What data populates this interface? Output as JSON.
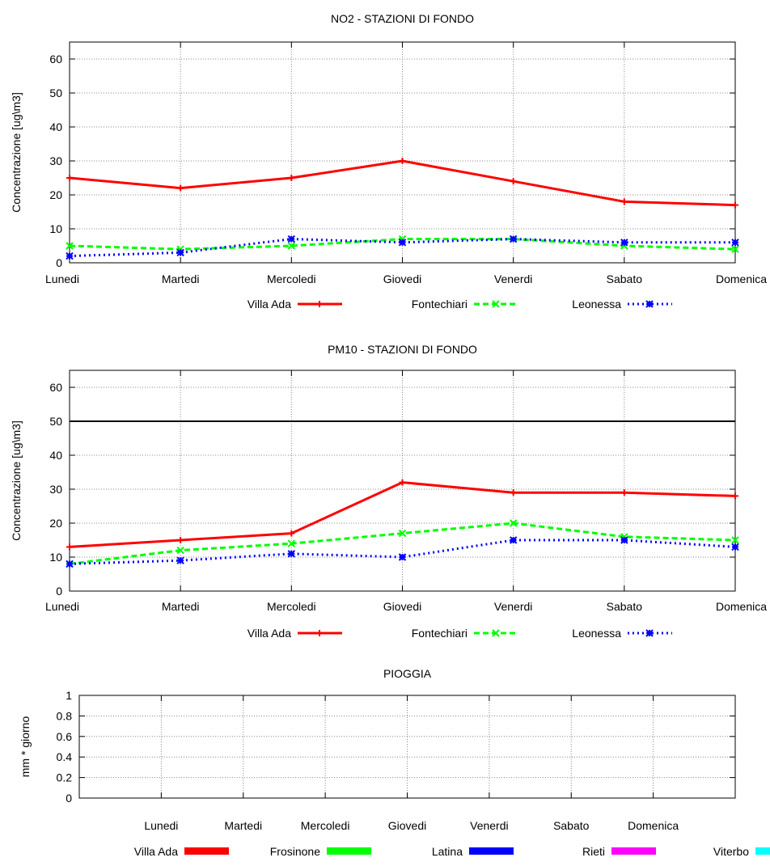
{
  "chart_data": [
    {
      "type": "line",
      "title": "NO2 - STAZIONI DI FONDO",
      "xlabel": "",
      "ylabel": "Concentrazione [ug\\m3]",
      "categories": [
        "Lunedi",
        "Martedi",
        "Mercoledi",
        "Giovedi",
        "Venerdi",
        "Sabato",
        "Domenica"
      ],
      "ylim": [
        0,
        65
      ],
      "yticks": [
        "0",
        "10",
        "20",
        "30",
        "40",
        "50",
        "60"
      ],
      "grid": true,
      "legend_position": "bottom",
      "series": [
        {
          "name": "Villa Ada",
          "color": "#ff0000",
          "marker": "plus",
          "dash": "solid",
          "values": [
            25,
            22,
            25,
            30,
            24,
            18,
            17
          ]
        },
        {
          "name": "Fontechiari",
          "color": "#00ff00",
          "marker": "cross",
          "dash": "dashed",
          "values": [
            5,
            4,
            5,
            7,
            7,
            5,
            4
          ]
        },
        {
          "name": "Leonessa",
          "color": "#0000ff",
          "marker": "star",
          "dash": "dotted",
          "values": [
            2,
            3,
            7,
            6,
            7,
            6,
            6
          ]
        }
      ]
    },
    {
      "type": "line",
      "title": "PM10 - STAZIONI DI FONDO",
      "xlabel": "",
      "ylabel": "Concentrazione [ug\\m3]",
      "categories": [
        "Lunedi",
        "Martedi",
        "Mercoledi",
        "Giovedi",
        "Venerdi",
        "Sabato",
        "Domenica"
      ],
      "ylim": [
        0,
        65
      ],
      "yticks": [
        "0",
        "10",
        "20",
        "30",
        "40",
        "50",
        "60"
      ],
      "grid": true,
      "legend_position": "bottom",
      "threshold": 50,
      "series": [
        {
          "name": "Villa Ada",
          "color": "#ff0000",
          "marker": "plus",
          "dash": "solid",
          "values": [
            13,
            15,
            17,
            32,
            29,
            29,
            28
          ]
        },
        {
          "name": "Fontechiari",
          "color": "#00ff00",
          "marker": "cross",
          "dash": "dashed",
          "values": [
            8,
            12,
            14,
            17,
            20,
            16,
            15
          ]
        },
        {
          "name": "Leonessa",
          "color": "#0000ff",
          "marker": "star",
          "dash": "dotted",
          "values": [
            8,
            9,
            11,
            10,
            15,
            15,
            13
          ]
        }
      ]
    },
    {
      "type": "bar",
      "title": "PIOGGIA",
      "xlabel": "",
      "ylabel": "mm * giorno",
      "categories": [
        "Lunedi",
        "Martedi",
        "Mercoledi",
        "Giovedi",
        "Venerdi",
        "Sabato",
        "Domenica"
      ],
      "ylim": [
        0,
        1
      ],
      "yticks": [
        "0",
        "0.2",
        "0.4",
        "0.6",
        "0.8",
        "1"
      ],
      "grid": true,
      "legend_position": "bottom",
      "series": [
        {
          "name": "Villa Ada",
          "color": "#ff0000",
          "values": [
            0,
            0,
            0,
            0,
            0,
            0,
            0
          ]
        },
        {
          "name": "Frosinone",
          "color": "#00ff00",
          "values": [
            0,
            0,
            0,
            0,
            0,
            0,
            0
          ]
        },
        {
          "name": "Latina",
          "color": "#0000ff",
          "values": [
            0,
            0,
            0,
            0,
            0,
            0,
            0
          ]
        },
        {
          "name": "Rieti",
          "color": "#ff00ff",
          "values": [
            0,
            0,
            0,
            0,
            0,
            0,
            0
          ]
        },
        {
          "name": "Viterbo",
          "color": "#00ffff",
          "values": [
            0,
            0,
            0,
            0,
            0,
            0,
            0
          ]
        }
      ]
    }
  ]
}
